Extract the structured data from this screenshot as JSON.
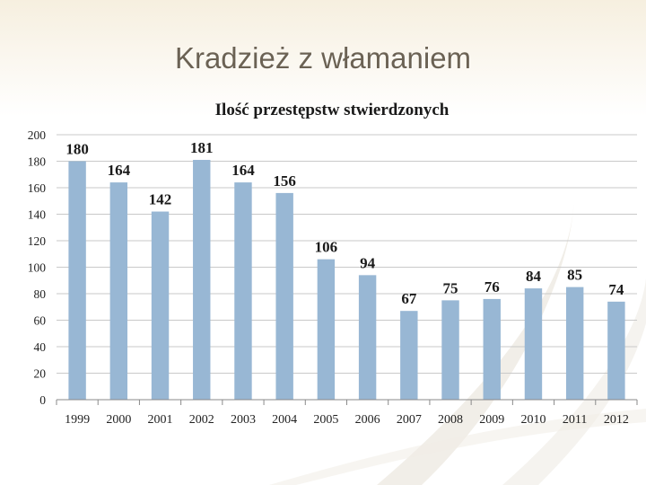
{
  "slide": {
    "title": "Kradzież z włamaniem"
  },
  "colors": {
    "bar": "#98b7d4",
    "grid": "#c9c9c9",
    "axis": "#8a8a8a",
    "title": "#6b6254"
  },
  "chart_data": {
    "type": "bar",
    "title": "Ilość przestępstw stwierdzonych",
    "xlabel": "",
    "ylabel": "",
    "categories": [
      "1999",
      "2000",
      "2001",
      "2002",
      "2003",
      "2004",
      "2005",
      "2006",
      "2007",
      "2008",
      "2009",
      "2010",
      "2011",
      "2012"
    ],
    "values": [
      180,
      164,
      142,
      181,
      164,
      156,
      106,
      94,
      67,
      75,
      76,
      84,
      85,
      74
    ],
    "ylim": [
      0,
      200
    ],
    "yticks": [
      0,
      20,
      40,
      60,
      80,
      100,
      120,
      140,
      160,
      180,
      200
    ],
    "grid": true,
    "legend": "none"
  }
}
